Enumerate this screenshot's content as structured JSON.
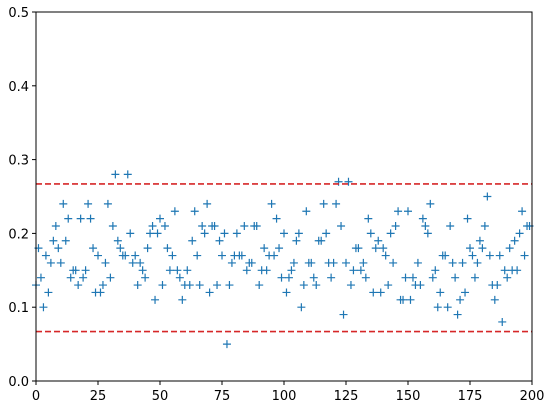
{
  "chart_data": {
    "type": "scatter",
    "x": [
      0,
      1,
      2,
      3,
      4,
      5,
      6,
      7,
      8,
      9,
      10,
      11,
      12,
      13,
      14,
      15,
      16,
      17,
      18,
      19,
      20,
      21,
      22,
      23,
      24,
      25,
      26,
      27,
      28,
      29,
      30,
      31,
      32,
      33,
      34,
      35,
      36,
      37,
      38,
      39,
      40,
      41,
      42,
      43,
      44,
      45,
      46,
      47,
      48,
      49,
      50,
      51,
      52,
      53,
      54,
      55,
      56,
      57,
      58,
      59,
      60,
      61,
      62,
      63,
      64,
      65,
      66,
      67,
      68,
      69,
      70,
      71,
      72,
      73,
      74,
      75,
      76,
      77,
      78,
      79,
      80,
      81,
      82,
      83,
      84,
      85,
      86,
      87,
      88,
      89,
      90,
      91,
      92,
      93,
      94,
      95,
      96,
      97,
      98,
      99,
      100,
      101,
      102,
      103,
      104,
      105,
      106,
      107,
      108,
      109,
      110,
      111,
      112,
      113,
      114,
      115,
      116,
      117,
      118,
      119,
      120,
      121,
      122,
      123,
      124,
      125,
      126,
      127,
      128,
      129,
      130,
      131,
      132,
      133,
      134,
      135,
      136,
      137,
      138,
      139,
      140,
      141,
      142,
      143,
      144,
      145,
      146,
      147,
      148,
      149,
      150,
      151,
      152,
      153,
      154,
      155,
      156,
      157,
      158,
      159,
      160,
      161,
      162,
      163,
      164,
      165,
      166,
      167,
      168,
      169,
      170,
      171,
      172,
      173,
      174,
      175,
      176,
      177,
      178,
      179,
      180,
      181,
      182,
      183,
      184,
      185,
      186,
      187,
      188,
      189,
      190,
      191,
      192,
      193,
      194,
      195,
      196,
      197,
      198,
      199
    ],
    "series": [
      {
        "color": "#1f77b4",
        "marker": "+",
        "values": [
          0.13,
          0.18,
          0.14,
          0.1,
          0.17,
          0.12,
          0.16,
          0.19,
          0.21,
          0.18,
          0.16,
          0.24,
          0.19,
          0.22,
          0.14,
          0.15,
          0.15,
          0.13,
          0.22,
          0.14,
          0.15,
          0.24,
          0.22,
          0.18,
          0.12,
          0.17,
          0.12,
          0.13,
          0.16,
          0.24,
          0.14,
          0.21,
          0.28,
          0.19,
          0.18,
          0.17,
          0.17,
          0.28,
          0.2,
          0.16,
          0.17,
          0.13,
          0.16,
          0.15,
          0.14,
          0.18,
          0.2,
          0.21,
          0.11,
          0.2,
          0.22,
          0.13,
          0.21,
          0.18,
          0.15,
          0.17,
          0.23,
          0.15,
          0.14,
          0.11,
          0.13,
          0.15,
          0.13,
          0.19,
          0.23,
          0.17,
          0.13,
          0.21,
          0.2,
          0.24,
          0.12,
          0.21,
          0.21,
          0.13,
          0.19,
          0.17,
          0.2,
          0.05,
          0.13,
          0.16,
          0.17,
          0.2,
          0.17,
          0.17,
          0.21,
          0.15,
          0.16,
          0.16,
          0.21,
          0.21,
          0.13,
          0.15,
          0.18,
          0.15,
          0.17,
          0.24,
          0.17,
          0.22,
          0.18,
          0.14,
          0.2,
          0.12,
          0.14,
          0.15,
          0.16,
          0.19,
          0.2,
          0.1,
          0.13,
          0.23,
          0.16,
          0.16,
          0.14,
          0.13,
          0.19,
          0.19,
          0.24,
          0.2,
          0.16,
          0.14,
          0.16,
          0.24,
          0.27,
          0.21,
          0.09,
          0.16,
          0.27,
          0.13,
          0.15,
          0.18,
          0.18,
          0.15,
          0.16,
          0.14,
          0.22,
          0.2,
          0.12,
          0.18,
          0.19,
          0.12,
          0.18,
          0.17,
          0.13,
          0.2,
          0.16,
          0.21,
          0.23,
          0.11,
          0.11,
          0.14,
          0.23,
          0.11,
          0.14,
          0.13,
          0.16,
          0.13,
          0.22,
          0.21,
          0.2,
          0.24,
          0.14,
          0.15,
          0.1,
          0.12,
          0.17,
          0.17,
          0.1,
          0.21,
          0.16,
          0.14,
          0.09,
          0.11,
          0.16,
          0.12,
          0.22,
          0.18,
          0.17,
          0.14,
          0.16,
          0.19,
          0.18,
          0.21,
          0.25,
          0.17,
          0.13,
          0.11,
          0.13,
          0.17,
          0.08,
          0.15,
          0.14,
          0.18,
          0.15,
          0.19,
          0.15,
          0.2,
          0.23,
          0.17,
          0.21,
          0.21
        ]
      }
    ],
    "hlines": [
      {
        "value": 0.267,
        "color": "#d62728",
        "style": "dashed"
      },
      {
        "value": 0.067,
        "color": "#d62728",
        "style": "dashed"
      }
    ],
    "xlim": [
      0,
      200
    ],
    "xticks": [
      0,
      25,
      50,
      75,
      100,
      125,
      150,
      175,
      200
    ],
    "ylim": [
      0,
      0.5
    ],
    "yticks": [
      {
        "value": 0,
        "label": "0.0"
      },
      0.1,
      0.2,
      0.3,
      0.4,
      0.5
    ],
    "grid": false
  }
}
